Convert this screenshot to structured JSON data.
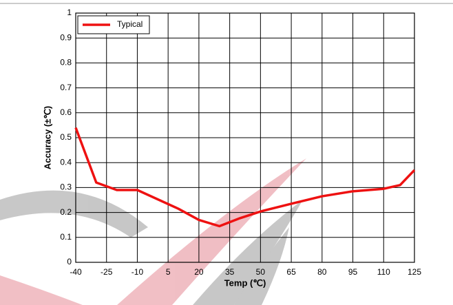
{
  "chart_data": {
    "type": "line",
    "x_label": "Temp (℃)",
    "y_label": "Accuracy (±℃)",
    "x": [
      -40,
      -30,
      -20,
      -10,
      10,
      20,
      30,
      40,
      50,
      65,
      80,
      95,
      110,
      118,
      125
    ],
    "series": [
      {
        "name": "Typical",
        "color": "#ee1111",
        "values": [
          0.54,
          0.32,
          0.29,
          0.29,
          0.215,
          0.17,
          0.145,
          0.177,
          0.204,
          0.235,
          0.265,
          0.285,
          0.295,
          0.31,
          0.37
        ]
      }
    ],
    "xlim": [
      -40,
      125
    ],
    "xticks": [
      -40,
      -25,
      -10,
      5,
      20,
      35,
      50,
      65,
      80,
      95,
      110,
      125
    ],
    "ylim": [
      0,
      1
    ],
    "yticks": [
      0,
      0.1,
      0.2,
      0.3,
      0.4,
      0.5,
      0.6,
      0.7,
      0.8,
      0.9,
      1
    ],
    "grid": true,
    "legend": "upper left"
  }
}
